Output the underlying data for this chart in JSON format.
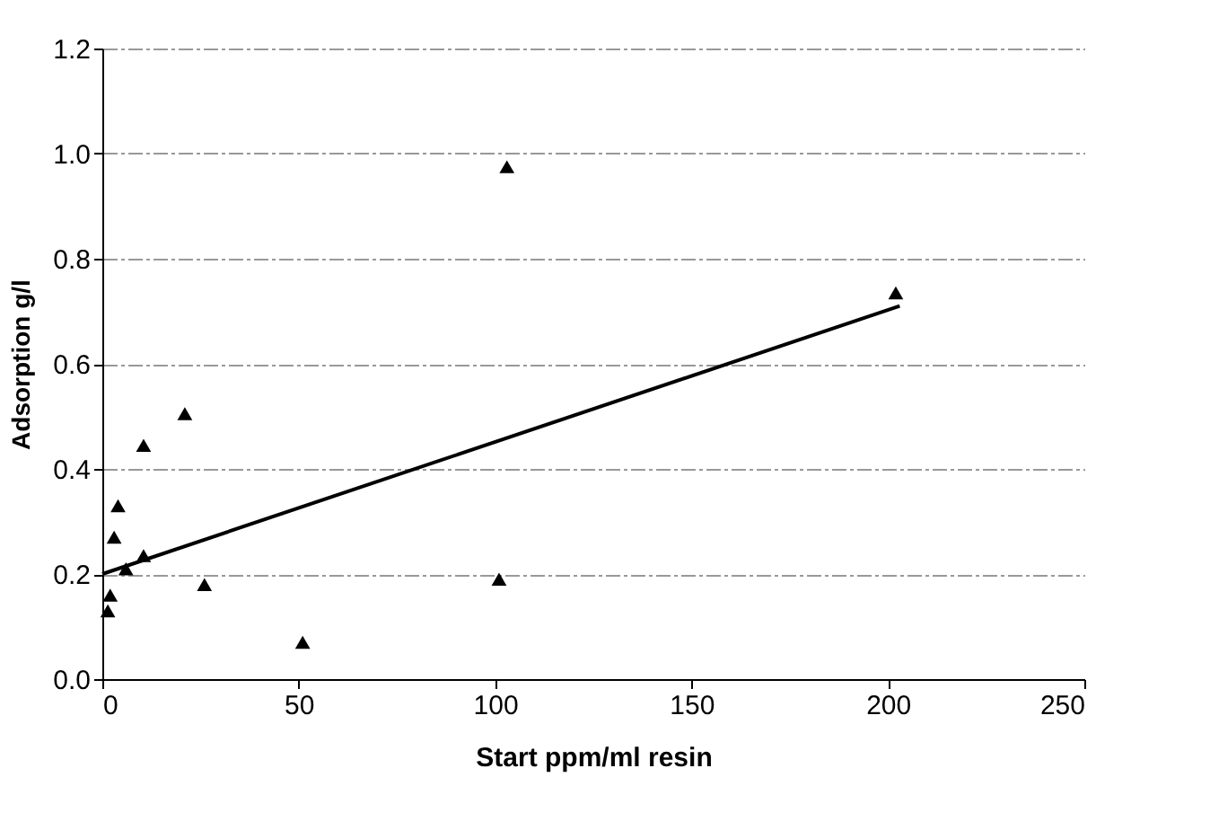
{
  "chart_data": {
    "type": "scatter",
    "xlabel": "Start ppm/ml resin",
    "ylabel": "Adsorption g/l",
    "xlim": [
      0,
      250
    ],
    "xticks": [
      0,
      50,
      100,
      150,
      200,
      250
    ],
    "ylim": [
      0,
      1.2
    ],
    "yticks": [
      {
        "value": 0,
        "label": "0.0"
      },
      0.2,
      0.4,
      0.6,
      0.8,
      {
        "value": 1,
        "label": "1.0"
      },
      1.2
    ],
    "grid": "y",
    "series": [
      {
        "color": "#000000",
        "marker": "triangle",
        "x": [
          1.4,
          2,
          3,
          4,
          6,
          10.5,
          10.5,
          21,
          26,
          51,
          101,
          103,
          202
        ],
        "values": [
          0.13,
          0.16,
          0.27,
          0.33,
          0.21,
          0.235,
          0.445,
          0.505,
          0.18,
          0.07,
          0.19,
          0.975,
          0.735
        ]
      },
      {
        "type": "line",
        "color": "#000000",
        "line_style": "solid",
        "x": [
          0,
          203
        ],
        "values": [
          0.2,
          0.71
        ]
      }
    ]
  }
}
